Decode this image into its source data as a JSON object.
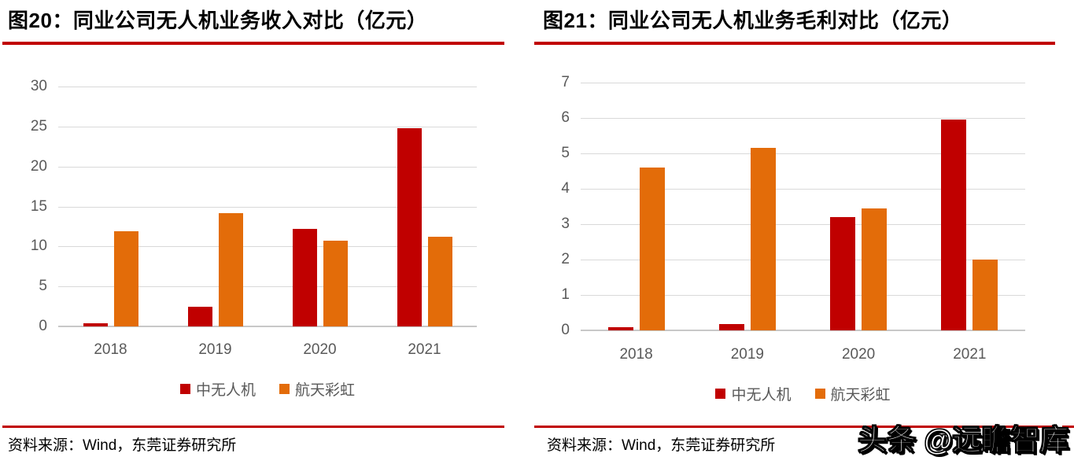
{
  "panels": [
    {
      "source": "资料来源：Wind，东莞证券研究所"
    },
    {
      "source": "资料来源：Wind，东莞证券研究所"
    }
  ],
  "watermark": "头条 @远瞻智库",
  "colors": {
    "rule_red": "#C00000",
    "series_zhongwurenji_red": "#C00000",
    "series_hangtiancaihong_orange": "#E36C09",
    "grid_gray": "#D9D9D9",
    "axis_label_gray": "#595959",
    "title_black": "#000000",
    "watermark_fill": "#FFFFFF",
    "watermark_outline": "#000000"
  },
  "chart_data": [
    {
      "type": "bar",
      "title": "图20：同业公司无人机业务收入对比（亿元）",
      "unit": "亿元",
      "categories": [
        "2018",
        "2019",
        "2020",
        "2021"
      ],
      "series": [
        {
          "name": "中无人机",
          "color": "#C00000",
          "values": [
            0.4,
            2.5,
            12.2,
            24.8
          ]
        },
        {
          "name": "航天彩虹",
          "color": "#E36C09",
          "values": [
            11.9,
            14.2,
            10.7,
            11.2
          ]
        }
      ],
      "ylim": [
        0,
        30
      ],
      "yticks": [
        0,
        5,
        10,
        15,
        20,
        25,
        30
      ],
      "grid": true,
      "legend_position": "bottom"
    },
    {
      "type": "bar",
      "title": "图21：同业公司无人机业务毛利对比（亿元）",
      "unit": "亿元",
      "categories": [
        "2018",
        "2019",
        "2020",
        "2021"
      ],
      "series": [
        {
          "name": "中无人机",
          "color": "#C00000",
          "values": [
            0.1,
            0.18,
            3.2,
            5.95
          ]
        },
        {
          "name": "航天彩虹",
          "color": "#E36C09",
          "values": [
            4.6,
            5.15,
            3.45,
            2.0
          ]
        }
      ],
      "ylim": [
        0,
        7
      ],
      "yticks": [
        0,
        1,
        2,
        3,
        4,
        5,
        6,
        7
      ],
      "grid": true,
      "legend_position": "bottom"
    }
  ]
}
